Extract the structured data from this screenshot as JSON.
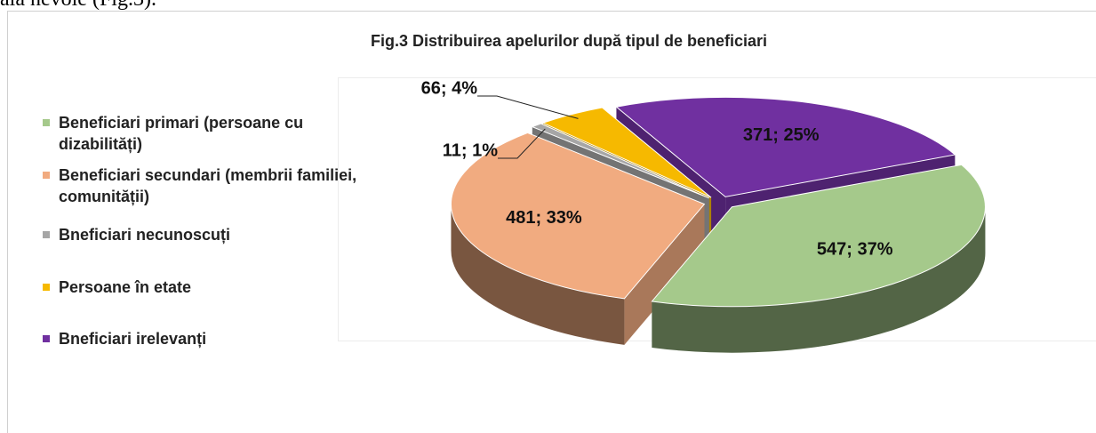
{
  "page_text": "ală nevoie (Fig.3).",
  "chart_data": {
    "type": "pie3d",
    "title": "Fig.3 Distribuirea apelurilor după tipul de beneficiari",
    "categories": [
      "Beneficiari primari (persoane cu dizabilități)",
      "Beneficiari secundari (membrii familiei, comunității)",
      "Bneficiari necunoscuți",
      "Persoane în etate",
      "Bneficiari irelevanți"
    ],
    "values": [
      547,
      481,
      11,
      66,
      371
    ],
    "value_labels": [
      "547; 37%",
      "481; 33%",
      "11; 1%",
      "66; 4%",
      "371; 25%"
    ],
    "colors": [
      "#a5c98b",
      "#f1ab80",
      "#a6a6a6",
      "#f6b900",
      "#7030a0"
    ],
    "legend": "left"
  }
}
